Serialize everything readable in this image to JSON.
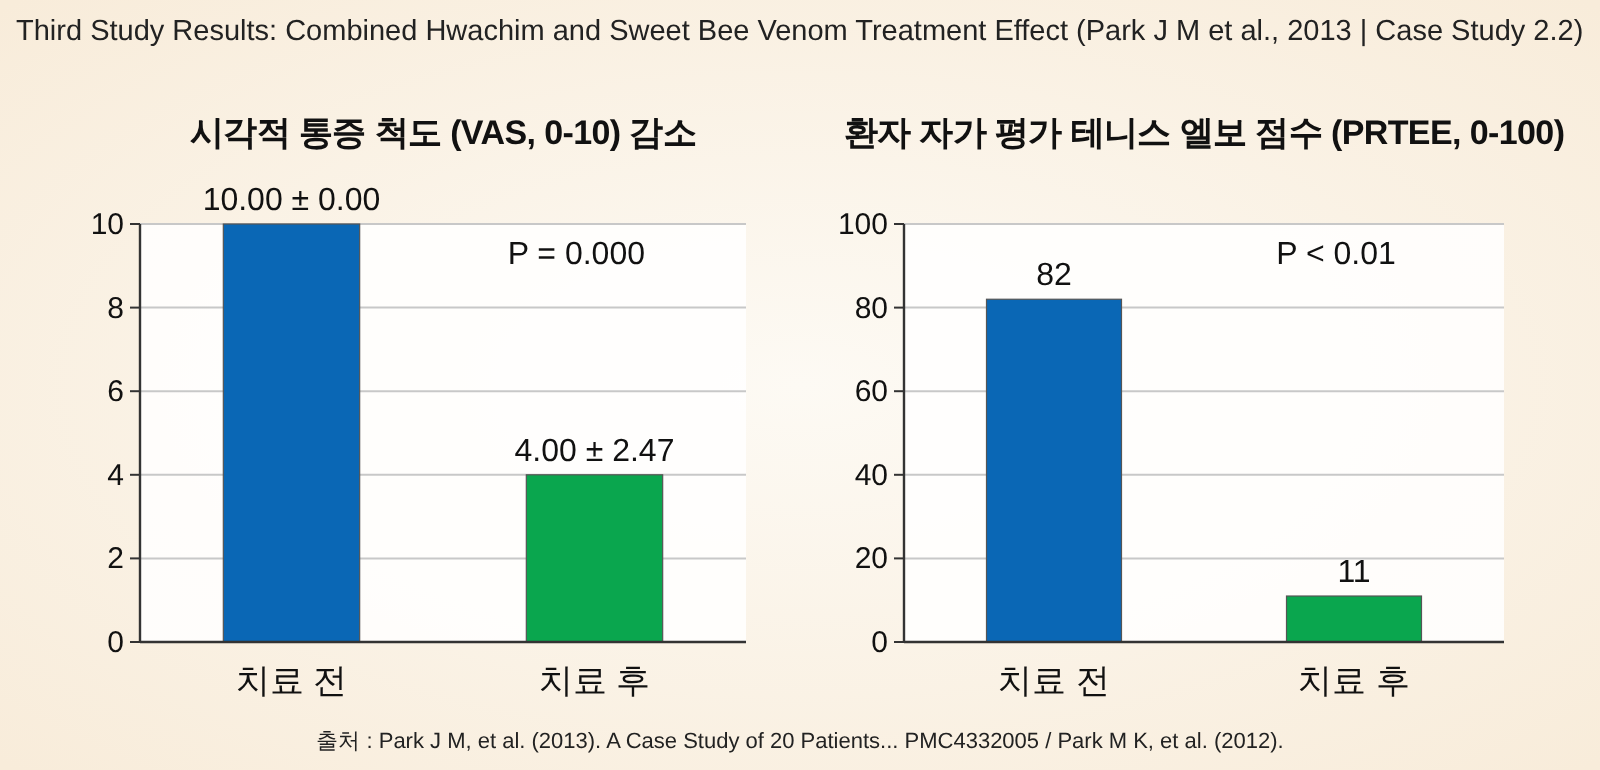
{
  "chart_data": [
    {
      "type": "bar",
      "title": "시각적 통증 척도 (VAS, 0-10) 감소",
      "categories": [
        "치료 전",
        "치료 후"
      ],
      "values": [
        10,
        4
      ],
      "colors": [
        "#0a67b5",
        "#0aa64e"
      ],
      "value_labels": [
        "10.00 ± 0.00",
        "4.00 ± 2.47"
      ],
      "ylim": [
        0,
        10
      ],
      "yticks": [
        0,
        2,
        4,
        6,
        8,
        10
      ],
      "grid": "y",
      "annotations": [
        "Third Study Results: Combined Hwachim and Sweet Bee Venom Treatment Effect (Park J M et al., 2013 | Case Study 2.2)",
        "P = 0.000"
      ]
    },
    {
      "type": "bar",
      "title": "환자 자가 평가 테니스 엘보 점수 (PRTEE, 0-100)",
      "categories": [
        "치료 전",
        "치료 후"
      ],
      "values": [
        82,
        11
      ],
      "colors": [
        "#0a67b5",
        "#0aa64e"
      ],
      "data_labels": true,
      "ylim": [
        0,
        100
      ],
      "yticks": [
        0,
        20,
        40,
        60,
        80,
        100
      ],
      "grid": "y",
      "annotations": [
        "P < 0.01",
        "출처 : Park J M, et al. (2013). A Case Study of 20 Patients... PMC4332005 / Park M K, et al. (2012)."
      ]
    }
  ]
}
